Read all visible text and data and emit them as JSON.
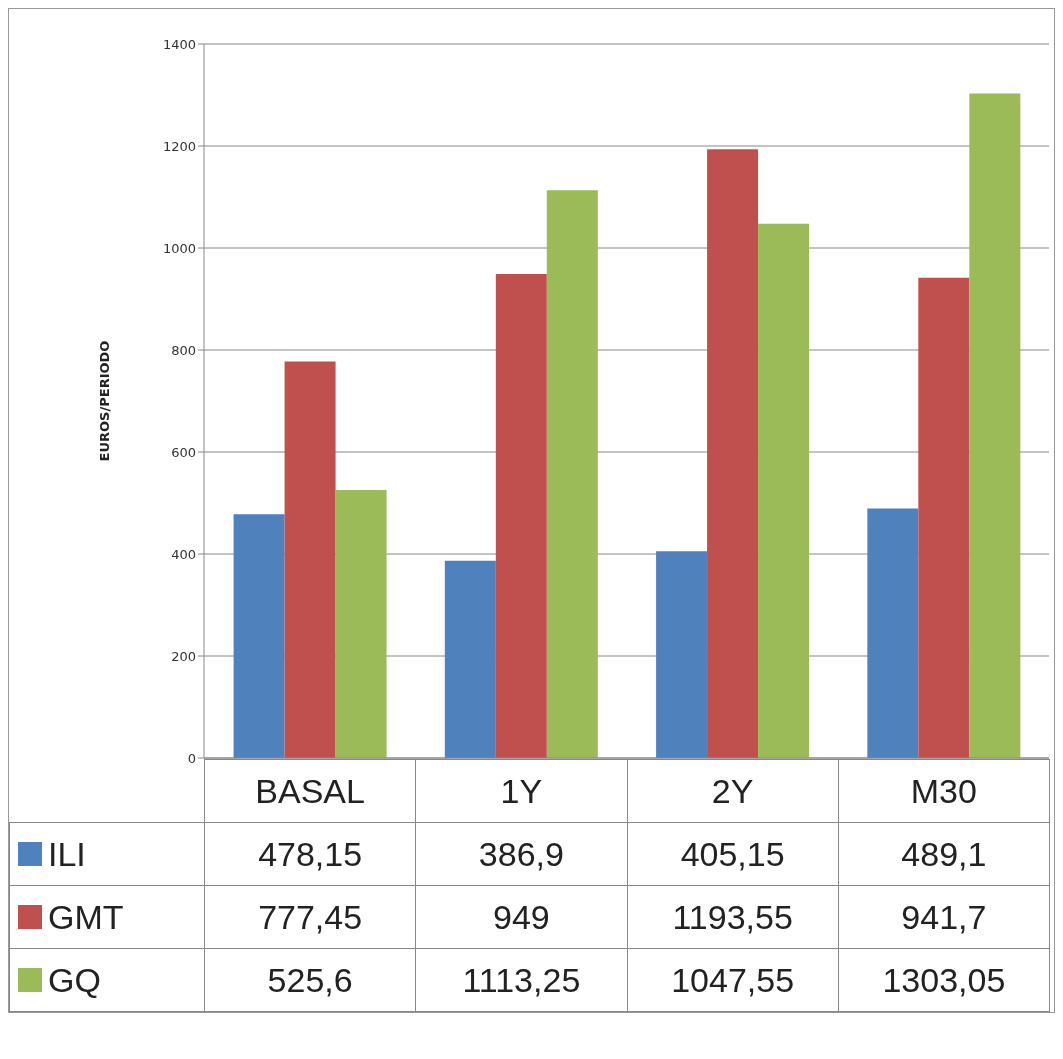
{
  "chart_data": {
    "type": "bar",
    "ylabel": "EUROS/PERIODO",
    "categories": [
      "BASAL",
      "1Y",
      "2Y",
      "M30"
    ],
    "series": [
      {
        "name": "ILI",
        "color": "#4f81bd",
        "values": [
          478.15,
          386.9,
          405.15,
          489.1
        ],
        "value_labels": [
          "478,15",
          "386,9",
          "405,15",
          "489,1"
        ]
      },
      {
        "name": "GMT",
        "color": "#c0504d",
        "values": [
          777.45,
          949,
          1193.55,
          941.7
        ],
        "value_labels": [
          "777,45",
          "949",
          "1193,55",
          "941,7"
        ]
      },
      {
        "name": "GQ",
        "color": "#9bbb59",
        "values": [
          525.6,
          1113.25,
          1047.55,
          1303.05
        ],
        "value_labels": [
          "525,6",
          "1113,25",
          "1047,55",
          "1303,05"
        ]
      }
    ],
    "ylim": [
      0,
      1400
    ],
    "yticks": [
      0,
      200,
      400,
      600,
      800,
      1000,
      1200,
      1400
    ],
    "grid": "y",
    "legend": "bottom"
  }
}
